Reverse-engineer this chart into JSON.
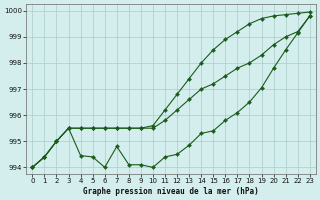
{
  "title": "Graphe pression niveau de la mer (hPa)",
  "background_color": "#d4eeee",
  "grid_color": "#aacccc",
  "line_color": "#1a5c1a",
  "xlim": [
    -0.5,
    23.5
  ],
  "ylim": [
    993.75,
    1000.25
  ],
  "yticks": [
    994,
    995,
    996,
    997,
    998,
    999,
    1000
  ],
  "xticks": [
    0,
    1,
    2,
    3,
    4,
    5,
    6,
    7,
    8,
    9,
    10,
    11,
    12,
    13,
    14,
    15,
    16,
    17,
    18,
    19,
    20,
    21,
    22,
    23
  ],
  "series_zigzag": [
    994.0,
    994.4,
    995.0,
    995.5,
    994.45,
    994.4,
    994.0,
    994.8,
    994.1,
    994.1,
    994.0,
    994.4,
    994.5,
    994.85,
    995.3,
    995.4,
    995.8,
    996.1,
    996.5,
    997.05,
    997.8,
    998.5,
    999.15,
    999.8
  ],
  "series_mid": [
    994.0,
    994.4,
    995.0,
    995.5,
    995.5,
    995.5,
    995.5,
    995.5,
    995.5,
    995.5,
    995.5,
    995.8,
    996.2,
    996.6,
    997.0,
    997.2,
    997.5,
    997.8,
    998.0,
    998.3,
    998.7,
    999.0,
    999.2,
    999.8
  ],
  "series_steep": [
    994.0,
    994.4,
    995.0,
    995.5,
    995.5,
    995.5,
    995.5,
    995.5,
    995.5,
    995.5,
    995.6,
    996.2,
    996.8,
    997.4,
    998.0,
    998.5,
    998.9,
    999.2,
    999.5,
    999.7,
    999.8,
    999.85,
    999.9,
    999.95
  ]
}
